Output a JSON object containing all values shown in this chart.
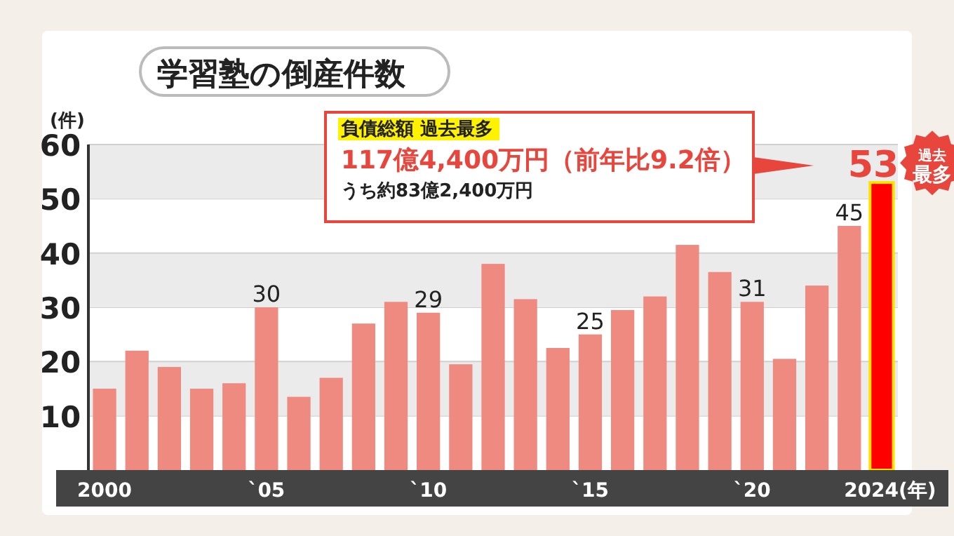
{
  "chart_data": {
    "type": "bar",
    "title": "学習塾の倒産件数",
    "ylabel": "(件)",
    "categories": [
      "2000",
      null,
      null,
      null,
      null,
      "`05",
      null,
      null,
      null,
      null,
      "`10",
      null,
      null,
      null,
      null,
      "`15",
      null,
      null,
      null,
      null,
      "`20",
      null,
      null,
      null,
      "2024(年)"
    ],
    "values": [
      15,
      22,
      19,
      15,
      16,
      30,
      13.5,
      17,
      27,
      31,
      29,
      19.5,
      38,
      31.5,
      22.5,
      25,
      29.5,
      32,
      41.5,
      36.5,
      31,
      20.5,
      34,
      45,
      53
    ],
    "colors": [
      "#ee8a80",
      "#ee8a80",
      "#ee8a80",
      "#ee8a80",
      "#ee8a80",
      "#ee8a80",
      "#ee8a80",
      "#ee8a80",
      "#ee8a80",
      "#ee8a80",
      "#ee8a80",
      "#ee8a80",
      "#ee8a80",
      "#ee8a80",
      "#ee8a80",
      "#ee8a80",
      "#ee8a80",
      "#ee8a80",
      "#ee8a80",
      "#ee8a80",
      "#ee8a80",
      "#ee8a80",
      "#ee8a80",
      "#ee8a80",
      "#ff0000"
    ],
    "value_labels": [
      null,
      null,
      null,
      null,
      null,
      "30",
      null,
      null,
      null,
      null,
      "29",
      null,
      null,
      null,
      null,
      "25",
      null,
      null,
      null,
      null,
      "31",
      null,
      null,
      "45",
      "53"
    ],
    "ylim": [
      0,
      60
    ],
    "yticks": [
      10,
      20,
      30,
      40,
      50,
      60
    ],
    "grid": "y",
    "annotations": [
      {
        "text": "過去最多",
        "x": "2024(年)",
        "y": 53
      },
      "負債総額 過去最多",
      "117億4,400万円（前年比9.2倍）",
      "うち約83億2,400万円"
    ]
  }
}
